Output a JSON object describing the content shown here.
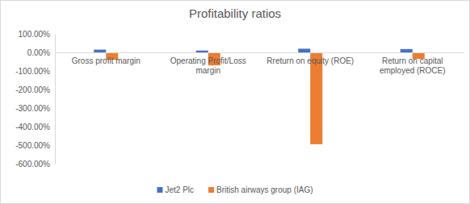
{
  "chart_data": {
    "type": "bar",
    "title": "Profitability ratios",
    "categories": [
      "Gross profit margin",
      "Operating Profit/Loss margin",
      "Rreturn on equity (ROE)",
      "Return on capital employed (ROCE)"
    ],
    "series": [
      {
        "name": "Jet2 Plc",
        "color": "#4472c4",
        "values": [
          15,
          10,
          20,
          18
        ]
      },
      {
        "name": "British airways group (IAG)",
        "color": "#ed7d31",
        "values": [
          -40,
          -70,
          -495,
          -35
        ]
      }
    ],
    "ylim": [
      -600,
      100
    ],
    "yticks": [
      {
        "value": 100,
        "label": "100.00%"
      },
      {
        "value": 0,
        "label": "0.00%"
      },
      {
        "value": -100,
        "label": "-100.00%"
      },
      {
        "value": -200,
        "label": "-200.00%"
      },
      {
        "value": -300,
        "label": "-300.00%"
      },
      {
        "value": -400,
        "label": "-400.00%"
      },
      {
        "value": -500,
        "label": "-500.00%"
      },
      {
        "value": -600,
        "label": "-600.00%"
      }
    ],
    "grid": false,
    "legend": "bottom"
  }
}
